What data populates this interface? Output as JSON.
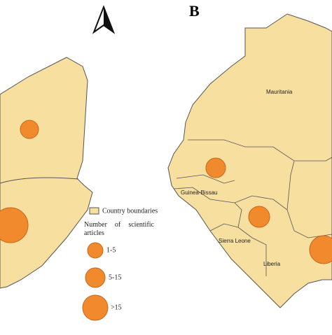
{
  "panel_label": "B",
  "legend": {
    "title": "Country boundaries",
    "size_title": "Number of scientific articles",
    "sizes": [
      "1-5",
      "5-15",
      ">15"
    ]
  },
  "places": [
    "Mauritania",
    "Guinea-Bissau",
    "Sierra Leone",
    "Liberia"
  ]
}
